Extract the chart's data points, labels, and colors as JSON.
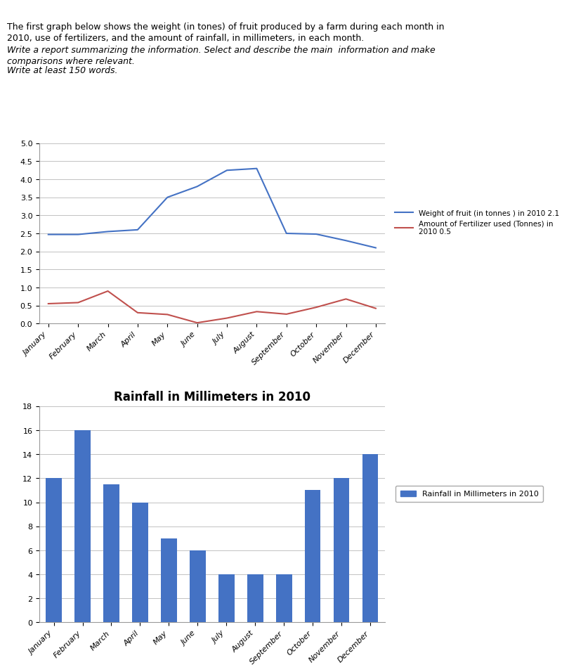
{
  "months": [
    "January",
    "February",
    "March",
    "April",
    "May",
    "June",
    "July",
    "August",
    "September",
    "October",
    "November",
    "December"
  ],
  "fruit_weight": [
    2.47,
    2.47,
    2.55,
    2.6,
    3.5,
    3.8,
    4.25,
    4.3,
    2.5,
    2.48,
    2.3,
    2.1
  ],
  "fertilizer": [
    0.55,
    0.58,
    0.9,
    0.3,
    0.25,
    0.02,
    0.15,
    0.33,
    0.26,
    0.45,
    0.68,
    0.42
  ],
  "rainfall": [
    12,
    16,
    11.5,
    10,
    7,
    6,
    4,
    4,
    4,
    11,
    12,
    14
  ],
  "fruit_color": "#4472C4",
  "fertilizer_color": "#C0504D",
  "rainfall_color": "#4472C4",
  "line1_label": "Weight of fruit (in tonnes ) in 2010 2.1",
  "line2_label": "Amount of Fertilizer used (Tonnes) in \n2010 0.5",
  "bar_label": "Rainfall in Millimeters in 2010",
  "bar_title": "Rainfall in Millimeters in 2010",
  "intro_text1": "The first graph below shows the weight (in tones) of fruit produced by a farm during each month in",
  "intro_text2": "2010, use of fertilizers, and the amount of rainfall, in millimeters, in each month.",
  "intro_italic1": "Write a report summarizing the information. Select and describe the main  information and make",
  "intro_italic2": "comparisons where relevant.",
  "intro_italic3": "Write at least 150 words.",
  "line_ylim": [
    0,
    5
  ],
  "line_yticks": [
    0,
    0.5,
    1,
    1.5,
    2,
    2.5,
    3,
    3.5,
    4,
    4.5,
    5
  ],
  "bar_ylim": [
    0,
    18
  ],
  "bar_yticks": [
    0,
    2,
    4,
    6,
    8,
    10,
    12,
    14,
    16,
    18
  ]
}
